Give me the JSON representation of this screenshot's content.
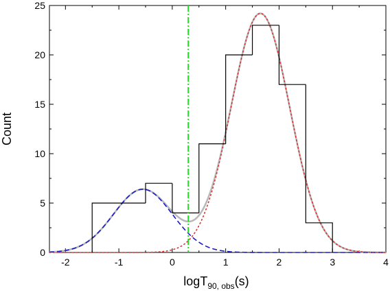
{
  "chart_data": {
    "type": "histogram",
    "xlabel": {
      "base": "logT",
      "sub": "90, obs",
      "unit": "(s)"
    },
    "ylabel": "Count",
    "xlim": [
      -2.3,
      4
    ],
    "ylim": [
      0,
      25
    ],
    "xticks": [
      -2,
      -1,
      0,
      1,
      2,
      3,
      4
    ],
    "yticks": [
      0,
      5,
      10,
      15,
      20,
      25
    ],
    "histogram": {
      "color": "#000000",
      "bins": [
        {
          "x0": -1.5,
          "x1": -0.5,
          "count": 5
        },
        {
          "x0": -0.5,
          "x1": 0.0,
          "count": 7
        },
        {
          "x0": 0.0,
          "x1": 0.5,
          "count": 4
        },
        {
          "x0": 0.5,
          "x1": 1.0,
          "count": 11
        },
        {
          "x0": 1.0,
          "x1": 1.5,
          "count": 20
        },
        {
          "x0": 1.5,
          "x1": 2.0,
          "count": 23
        },
        {
          "x0": 2.0,
          "x1": 2.5,
          "count": 17
        },
        {
          "x0": 2.5,
          "x1": 3.0,
          "count": 3
        }
      ]
    },
    "components": [
      {
        "id": "short",
        "style": "dashed",
        "color": "#1a1acc",
        "amplitude": 6.4,
        "mean": -0.55,
        "sigma": 0.55
      },
      {
        "id": "long",
        "style": "dotted",
        "color": "#e03030",
        "amplitude": 24.2,
        "mean": 1.65,
        "sigma": 0.55
      },
      {
        "id": "sum",
        "style": "solid",
        "color": "#b8b8b8"
      }
    ],
    "divider": {
      "x": 0.3,
      "style": "dash-dot",
      "color": "#22dd22"
    }
  }
}
